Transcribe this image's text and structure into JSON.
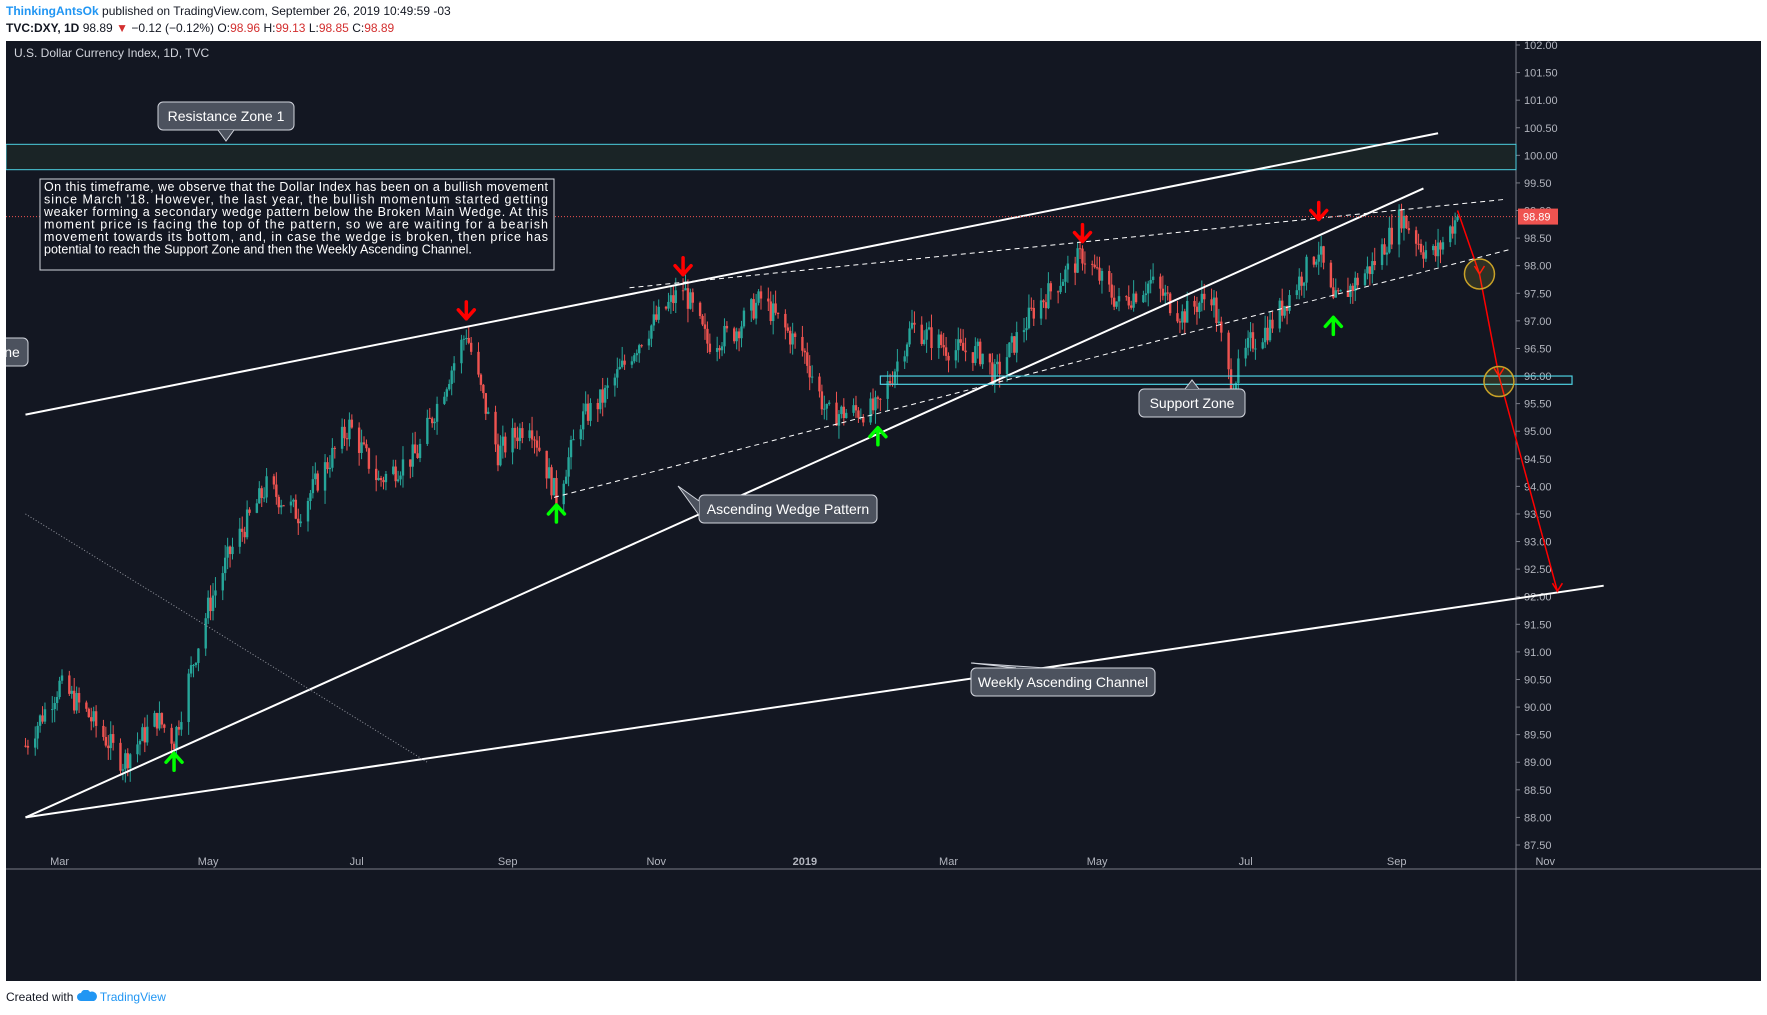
{
  "header": {
    "author": "ThinkingAntsOk",
    "published": "published on TradingView.com, September 26, 2019 10:49:59 -03",
    "symbol": "TVC:DXY, 1D",
    "last": "98.89",
    "change_arrow": "▼",
    "change": "−0.12 (−0.12%)",
    "o_label": "O:",
    "o_val": "98.96",
    "h_label": "H:",
    "h_val": "99.13",
    "l_label": "L:",
    "l_val": "98.85",
    "c_label": "C:",
    "c_val": "98.89"
  },
  "footer": {
    "created_with": "Created with",
    "brand": "TradingView",
    "brand_icon": "tradingview-cloud-icon"
  },
  "colors": {
    "background": "#131722",
    "up": "#26a69a",
    "down": "#ef5350",
    "annotation_line": "#ffffff",
    "zone_border": "#4dd0e1",
    "projection": "#ff0000",
    "up_arrow": "#00ff00",
    "down_arrow": "#ff0000",
    "price_line": "#ef5350",
    "callout_bg": "#4c525e"
  },
  "chart_data": {
    "type": "candlestick",
    "title": "U.S. Dollar Currency Index, 1D, TVC",
    "ylim": [
      87.5,
      102.0
    ],
    "y_ticks": [
      "102.00",
      "101.50",
      "101.00",
      "100.50",
      "100.00",
      "99.50",
      "99.00",
      "98.50",
      "98.00",
      "97.50",
      "97.00",
      "96.50",
      "96.00",
      "95.50",
      "95.00",
      "94.50",
      "94.00",
      "93.50",
      "93.00",
      "92.50",
      "92.00",
      "91.50",
      "91.00",
      "90.50",
      "90.00",
      "89.50",
      "89.00",
      "88.50",
      "88.00",
      "87.50"
    ],
    "x_ticks": [
      "Mar",
      "May",
      "Jul",
      "Sep",
      "Nov",
      "2019",
      "Mar",
      "May",
      "Jul",
      "Sep",
      "Nov"
    ],
    "last_price": "98.89",
    "series": [
      {
        "name": "DXY",
        "path": [
          [
            "2018-02-15",
            89.3
          ],
          [
            "2018-02-20",
            89.7
          ],
          [
            "2018-03-01",
            90.4
          ],
          [
            "2018-03-12",
            89.9
          ],
          [
            "2018-03-27",
            89.0
          ],
          [
            "2018-04-10",
            89.8
          ],
          [
            "2018-04-17",
            89.4
          ],
          [
            "2018-04-23",
            90.5
          ],
          [
            "2018-05-01",
            91.8
          ],
          [
            "2018-05-10",
            92.8
          ],
          [
            "2018-05-25",
            94.0
          ],
          [
            "2018-06-07",
            93.5
          ],
          [
            "2018-06-28",
            95.1
          ],
          [
            "2018-07-10",
            94.1
          ],
          [
            "2018-07-26",
            94.6
          ],
          [
            "2018-08-15",
            96.8
          ],
          [
            "2018-08-20",
            95.9
          ],
          [
            "2018-08-28",
            94.6
          ],
          [
            "2018-09-10",
            95.2
          ],
          [
            "2018-09-21",
            93.8
          ],
          [
            "2018-10-01",
            95.2
          ],
          [
            "2018-10-10",
            95.6
          ],
          [
            "2018-10-26",
            96.7
          ],
          [
            "2018-11-12",
            97.6
          ],
          [
            "2018-11-22",
            96.6
          ],
          [
            "2018-12-03",
            96.8
          ],
          [
            "2018-12-14",
            97.4
          ],
          [
            "2019-01-01",
            96.4
          ],
          [
            "2019-01-10",
            95.3
          ],
          [
            "2019-01-31",
            95.4
          ],
          [
            "2019-02-14",
            96.9
          ],
          [
            "2019-03-01",
            96.5
          ],
          [
            "2019-03-15",
            96.4
          ],
          [
            "2019-03-20",
            96.0
          ],
          [
            "2019-04-05",
            97.2
          ],
          [
            "2019-04-25",
            98.2
          ],
          [
            "2019-05-10",
            97.3
          ],
          [
            "2019-05-23",
            97.7
          ],
          [
            "2019-06-05",
            97.1
          ],
          [
            "2019-06-17",
            97.5
          ],
          [
            "2019-06-25",
            95.8
          ],
          [
            "2019-07-03",
            96.6
          ],
          [
            "2019-07-11",
            96.9
          ],
          [
            "2019-07-31",
            98.3
          ],
          [
            "2019-08-06",
            97.3
          ],
          [
            "2019-08-13",
            97.6
          ],
          [
            "2019-08-22",
            98.0
          ],
          [
            "2019-09-03",
            98.9
          ],
          [
            "2019-09-12",
            98.3
          ],
          [
            "2019-09-17",
            98.2
          ],
          [
            "2019-09-26",
            98.89
          ]
        ]
      }
    ],
    "annotations": {
      "callouts": [
        "Resistance Zone 1",
        "Support Zone",
        "Ascending Wedge Pattern",
        "Weekly Ascending Channel",
        "ne"
      ],
      "note": "On this timeframe, we observe that the Dollar Index has been on a bullish movement since March '18. However, the last year, the bullish momentum started getting weaker forming a secondary wedge pattern below the Broken Main Wedge. At this moment price is facing the top of the pattern, so we are waiting for a bearish movement towards its bottom, and, in case the wedge is broken, then price has potential to reach the Support Zone and then the Weekly Ascending Channel.",
      "resistance_zone": [
        99.74,
        100.2
      ],
      "support_zone": [
        95.85,
        96.0
      ],
      "wedge_lower": [
        [
          "2018-02-15",
          88.0
        ],
        [
          "2019-09-12",
          99.4
        ]
      ],
      "wedge_upper": [
        [
          "2018-02-15",
          95.3
        ],
        [
          "2019-09-18",
          100.4
        ]
      ],
      "inner_top": [
        [
          "2018-10-21",
          97.6
        ],
        [
          "2019-10-15",
          99.2
        ]
      ],
      "inner_bottom": [
        [
          "2018-09-20",
          93.8
        ],
        [
          "2019-10-18",
          98.3
        ]
      ],
      "channel": [
        [
          "2018-02-15",
          88.0
        ],
        [
          "2019-11-25",
          92.2
        ]
      ],
      "dotted_diag": [
        [
          "2018-02-15",
          93.5
        ],
        [
          "2018-07-30",
          89.0
        ]
      ],
      "projection": [
        [
          "2019-09-26",
          99.0
        ],
        [
          "2019-10-05",
          97.85
        ],
        [
          "2019-10-13",
          96.0
        ],
        [
          "2019-11-06",
          92.1
        ]
      ],
      "circles": [
        [
          "2019-10-05",
          97.85
        ],
        [
          "2019-10-13",
          95.9
        ]
      ],
      "up_arrows": [
        [
          "2018-04-17",
          89.0
        ],
        [
          "2018-09-21",
          93.5
        ],
        [
          "2019-01-31",
          94.9
        ],
        [
          "2019-06-25",
          95.5
        ],
        [
          "2019-08-06",
          96.9
        ]
      ],
      "down_arrows": [
        [
          "2018-08-15",
          97.2
        ],
        [
          "2018-11-12",
          98.0
        ],
        [
          "2019-04-25",
          98.6
        ],
        [
          "2019-07-31",
          99.0
        ]
      ]
    }
  }
}
